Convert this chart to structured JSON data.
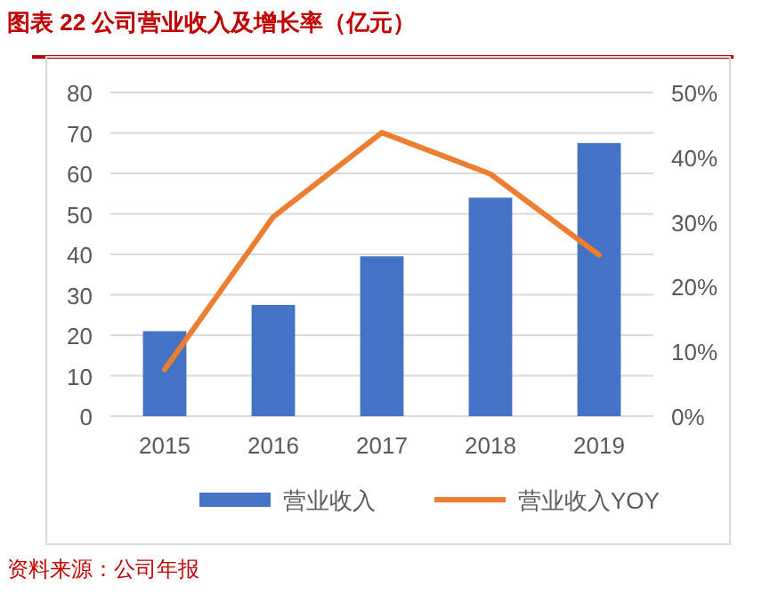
{
  "chart_data": {
    "type": "bar",
    "title": "图表 22   公司营业收入及增长率（亿元）",
    "categories": [
      "2015",
      "2016",
      "2017",
      "2018",
      "2019"
    ],
    "series": [
      {
        "name": "营业收入",
        "color": "#4472c4",
        "values": [
          21,
          27.5,
          39.5,
          54,
          67.5
        ]
      },
      {
        "name": "营业收入YOY",
        "type": "line",
        "axis": "y2",
        "color": "#ed7d31",
        "values": [
          7.2,
          30.8,
          43.8,
          37.4,
          24.9
        ]
      }
    ],
    "ylim": [
      0,
      80
    ],
    "yticks": [
      0,
      10,
      20,
      30,
      40,
      50,
      60,
      70,
      80
    ],
    "y2lim": [
      0,
      50
    ],
    "y2ticks": [
      {
        "value": 0,
        "label": "0%"
      },
      {
        "value": 10,
        "label": "10%"
      },
      {
        "value": 20,
        "label": "20%"
      },
      {
        "value": 30,
        "label": "30%"
      },
      {
        "value": 40,
        "label": "40%"
      },
      {
        "value": 50,
        "label": "50%"
      }
    ],
    "grid": "y",
    "legend": "bottom",
    "line_style": "solid",
    "annotations": [
      "资料来源：公司年报"
    ]
  }
}
